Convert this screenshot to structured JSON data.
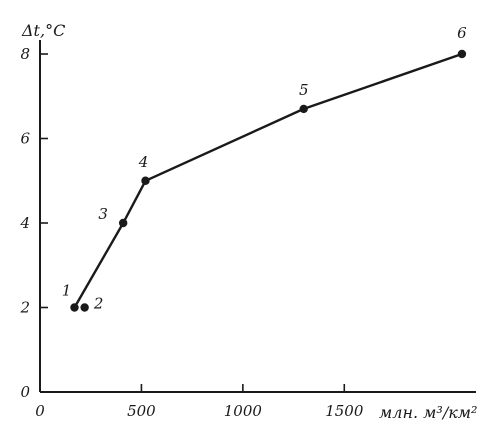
{
  "chart_data": {
    "type": "line",
    "title": "",
    "ylabel": "Δt,°C",
    "xlabel": "млн. м³/км²",
    "xlim": [
      0,
      2100
    ],
    "ylim": [
      0,
      8
    ],
    "x_ticks": [
      {
        "value": 0,
        "label": "0"
      },
      {
        "value": 500,
        "label": "500"
      },
      {
        "value": 1000,
        "label": "1000"
      },
      {
        "value": 1500,
        "label": "1500"
      }
    ],
    "y_ticks": [
      {
        "value": 0,
        "label": "0"
      },
      {
        "value": 2,
        "label": "2"
      },
      {
        "value": 4,
        "label": "4"
      },
      {
        "value": 6,
        "label": "6"
      },
      {
        "value": 8,
        "label": "8"
      }
    ],
    "points": [
      {
        "label": "1",
        "x": 170,
        "y": 2.0
      },
      {
        "label": "2",
        "x": 220,
        "y": 2.0
      },
      {
        "label": "3",
        "x": 410,
        "y": 4.0
      },
      {
        "label": "4",
        "x": 520,
        "y": 5.0
      },
      {
        "label": "5",
        "x": 1300,
        "y": 6.7
      },
      {
        "label": "6",
        "x": 2080,
        "y": 8.0
      }
    ],
    "line_order": [
      "1",
      "3",
      "4",
      "5",
      "6"
    ],
    "grid": false,
    "legend": "none"
  }
}
